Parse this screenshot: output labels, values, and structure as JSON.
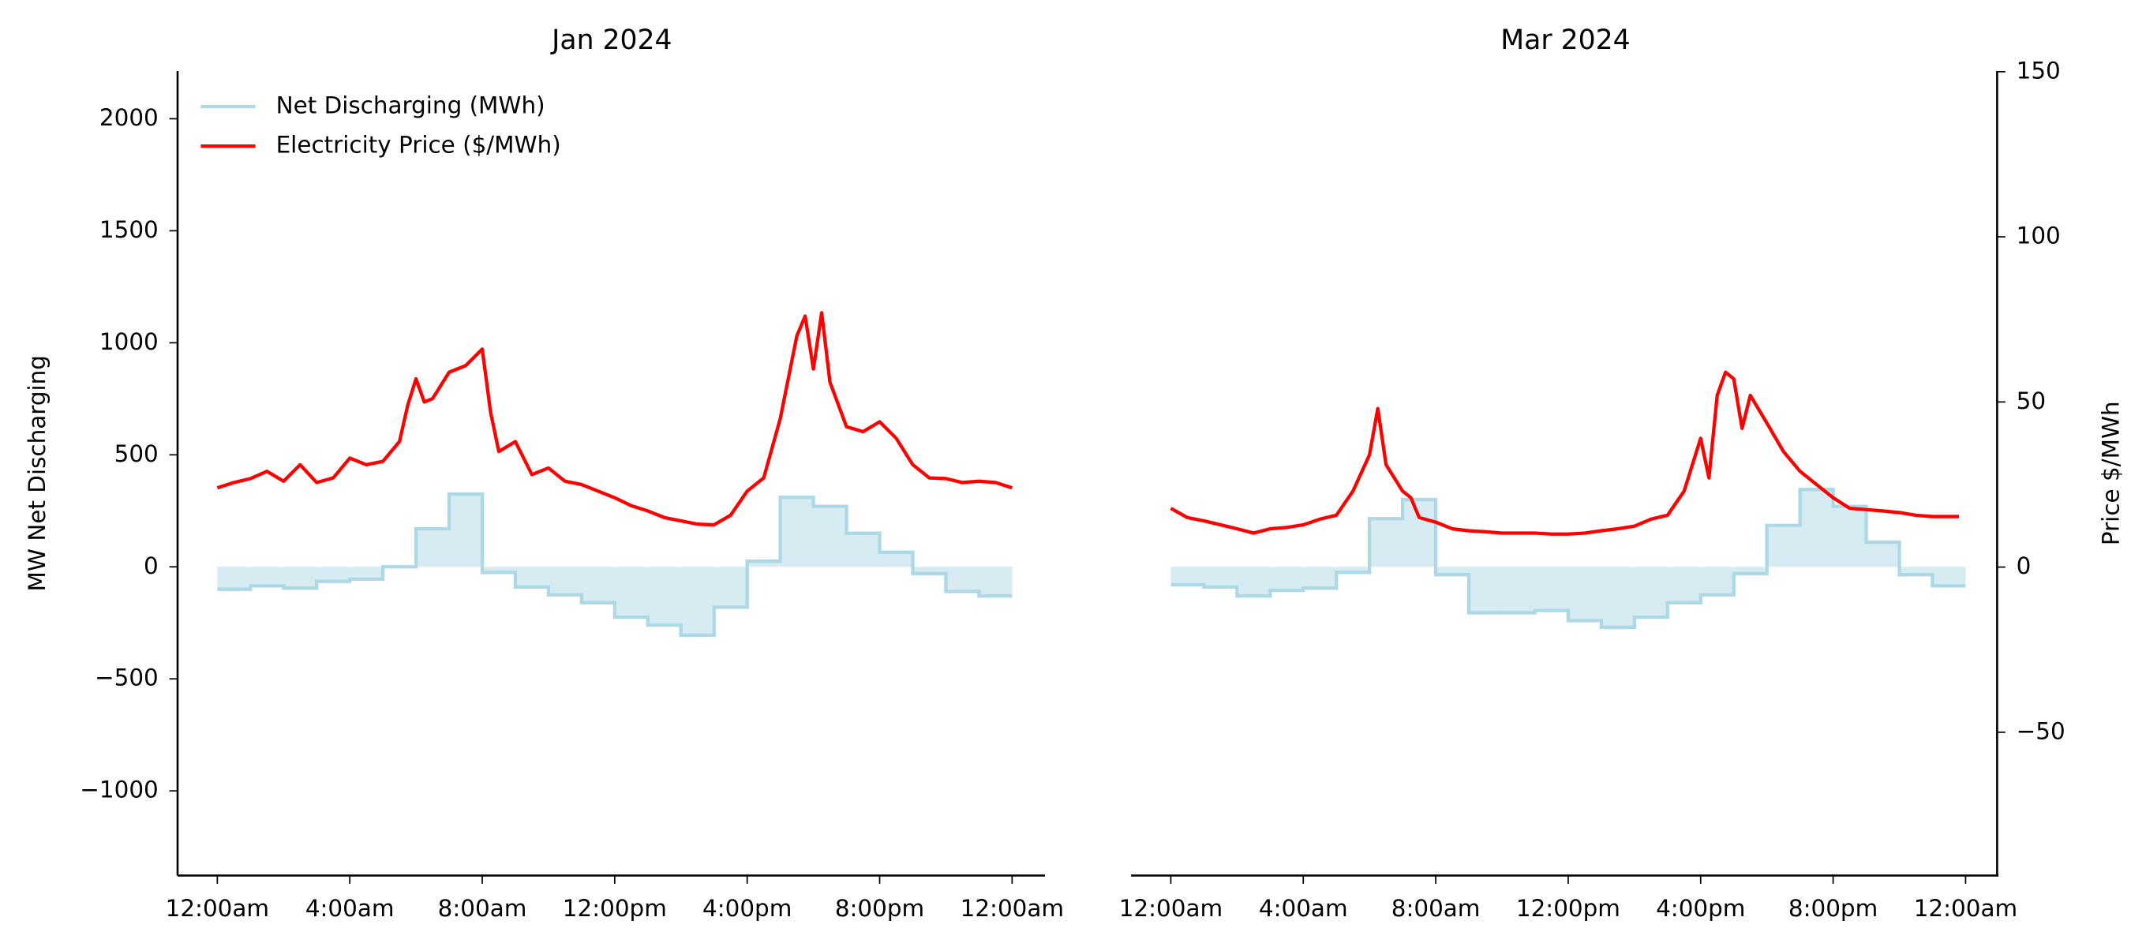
{
  "chart_data": [
    {
      "type": "line",
      "title": "Jan 2024",
      "ylabel": "MW Net Discharging",
      "legend": "upper left",
      "xlim": [
        -1.2,
        25.2
      ],
      "ylim": [
        -1378,
        2213
      ],
      "y2lim": [
        -93.4,
        150.2
      ],
      "xticks": [
        {
          "value": 0,
          "label": "12:00am"
        },
        {
          "value": 4,
          "label": "4:00am"
        },
        {
          "value": 8,
          "label": "8:00am"
        },
        {
          "value": 12,
          "label": "12:00pm"
        },
        {
          "value": 16,
          "label": "4:00pm"
        },
        {
          "value": 20,
          "label": "8:00pm"
        },
        {
          "value": 24,
          "label": "12:00am"
        }
      ],
      "yticks": [
        {
          "value": -1000,
          "label": "−1000"
        },
        {
          "value": -500,
          "label": "−500"
        },
        0,
        500,
        1000,
        1500,
        2000
      ],
      "series": [
        {
          "name": "Net Discharging (MWh)",
          "color": "#add8e6",
          "type": "step",
          "x": [
            0,
            1,
            2,
            3,
            4,
            5,
            6,
            7,
            8,
            9,
            10,
            11,
            12,
            13,
            14,
            15,
            16,
            17,
            18,
            19,
            20,
            21,
            22,
            23
          ],
          "values": [
            -100,
            -85,
            -95,
            -65,
            -55,
            0,
            170,
            325,
            -25,
            -90,
            -125,
            -160,
            -225,
            -260,
            -305,
            -180,
            25,
            310,
            270,
            150,
            65,
            -30,
            -110,
            -130
          ]
        },
        {
          "name": "Electricity Price ($/MWh)",
          "color": "#ff0000",
          "type": "line",
          "axis": "y2",
          "x": [
            0,
            0.5,
            1,
            1.5,
            2,
            2.5,
            3,
            3.5,
            4,
            4.5,
            5,
            5.5,
            5.75,
            6,
            6.25,
            6.5,
            7,
            7.5,
            8,
            8.25,
            8.5,
            9,
            9.5,
            10,
            10.5,
            11,
            11.5,
            12,
            12.5,
            13,
            13.5,
            14,
            14.5,
            15,
            15.5,
            16,
            16.5,
            17,
            17.5,
            17.75,
            18,
            18.25,
            18.5,
            19,
            19.5,
            20,
            20.5,
            21,
            21.5,
            22,
            22.5,
            23,
            23.5,
            24
          ],
          "values": [
            24,
            25.6,
            26.8,
            29,
            26,
            31,
            25.6,
            27,
            33,
            31,
            32,
            38,
            49,
            57,
            50,
            51,
            59,
            61,
            66,
            47,
            35,
            38,
            28,
            30,
            26,
            25,
            23,
            21,
            18.6,
            17,
            15,
            14,
            13,
            12.8,
            15.7,
            23,
            27,
            45,
            70,
            76,
            60,
            77,
            56,
            42.5,
            41,
            44,
            39,
            31,
            27,
            26.8,
            25.6,
            26,
            25.6,
            24
          ]
        }
      ]
    },
    {
      "type": "line",
      "title": "Mar 2024",
      "y2label": "Price $/MWh",
      "xlim": [
        -1.2,
        25.2
      ],
      "ylim": [
        -1378,
        2213
      ],
      "y2lim": [
        -93.4,
        150.2
      ],
      "xticks": [
        {
          "value": 0,
          "label": "12:00am"
        },
        {
          "value": 4,
          "label": "4:00am"
        },
        {
          "value": 8,
          "label": "8:00am"
        },
        {
          "value": 12,
          "label": "12:00pm"
        },
        {
          "value": 16,
          "label": "4:00pm"
        },
        {
          "value": 20,
          "label": "8:00pm"
        },
        {
          "value": 24,
          "label": "12:00am"
        }
      ],
      "y2ticks": [
        {
          "value": -50,
          "label": "−50"
        },
        0,
        50,
        100,
        150
      ],
      "series": [
        {
          "name": "Net Discharging (MWh)",
          "color": "#add8e6",
          "type": "step",
          "x": [
            0,
            1,
            2,
            3,
            4,
            5,
            6,
            7,
            8,
            9,
            10,
            11,
            12,
            13,
            14,
            15,
            16,
            17,
            18,
            19,
            20,
            21,
            22,
            23
          ],
          "values": [
            -80,
            -90,
            -130,
            -105,
            -95,
            -25,
            215,
            300,
            -35,
            -205,
            -205,
            -195,
            -240,
            -270,
            -225,
            -160,
            -125,
            -30,
            185,
            345,
            270,
            110,
            -35,
            -85
          ]
        },
        {
          "name": "Electricity Price ($/MWh)",
          "color": "#ff0000",
          "type": "line",
          "axis": "y2",
          "x": [
            0,
            0.5,
            1,
            1.5,
            2,
            2.5,
            3,
            3.5,
            4,
            4.5,
            5,
            5.5,
            6,
            6.25,
            6.5,
            7,
            7.25,
            7.5,
            8,
            8.5,
            9,
            9.5,
            10,
            10.5,
            11,
            11.5,
            12,
            12.5,
            13,
            13.5,
            14,
            14.5,
            15,
            15.5,
            16,
            16.25,
            16.5,
            16.75,
            17,
            17.25,
            17.5,
            18,
            18.5,
            19,
            19.5,
            20,
            20.5,
            21,
            21.5,
            22,
            22.5,
            23,
            23.5,
            23.8
          ],
          "values": [
            17.8,
            15,
            14,
            12.8,
            11.6,
            10.3,
            11.6,
            12,
            12.8,
            14.5,
            15.7,
            23,
            34,
            48,
            31,
            23,
            21,
            15,
            13.6,
            11.6,
            11,
            10.7,
            10.3,
            10.3,
            10.3,
            10,
            10,
            10.3,
            11,
            11.6,
            12.4,
            14.5,
            15.7,
            23,
            39,
            27,
            52,
            59,
            57,
            42,
            52,
            43.6,
            35,
            29,
            25,
            21,
            17.8,
            17.4,
            17,
            16.5,
            15.7,
            15.3,
            15.3,
            15.3
          ]
        }
      ]
    }
  ]
}
